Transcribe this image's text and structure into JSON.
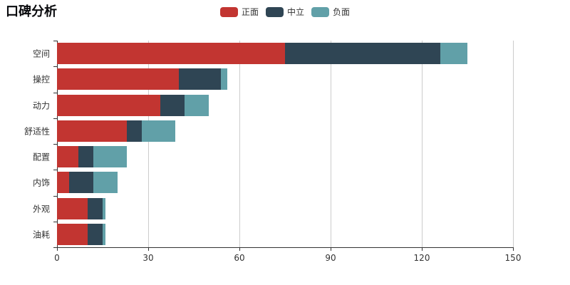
{
  "title": "口碑分析",
  "legend": {
    "items": [
      {
        "label": "正面",
        "color": "#c23531"
      },
      {
        "label": "中立",
        "color": "#2f4554"
      },
      {
        "label": "负面",
        "color": "#61a0a8"
      }
    ]
  },
  "chart_data": {
    "type": "bar",
    "orientation": "horizontal",
    "stacked": true,
    "title": "口碑分析",
    "categories": [
      "空间",
      "操控",
      "动力",
      "舒适性",
      "配置",
      "内饰",
      "外观",
      "油耗"
    ],
    "series": [
      {
        "name": "正面",
        "color": "#c23531",
        "values": [
          75,
          40,
          34,
          23,
          7,
          4,
          10,
          10
        ]
      },
      {
        "name": "中立",
        "color": "#2f4554",
        "values": [
          51,
          14,
          8,
          5,
          5,
          8,
          5,
          5
        ]
      },
      {
        "name": "负面",
        "color": "#61a0a8",
        "values": [
          9,
          2,
          8,
          11,
          11,
          8,
          1,
          1
        ]
      }
    ],
    "x_ticks": [
      0,
      30,
      60,
      90,
      120,
      150
    ],
    "xlim": [
      0,
      150
    ],
    "xlabel": "",
    "ylabel": "",
    "grid": true,
    "gridline_color": "#cccccc",
    "axis_color": "#333333",
    "legend_position": "top-center"
  }
}
